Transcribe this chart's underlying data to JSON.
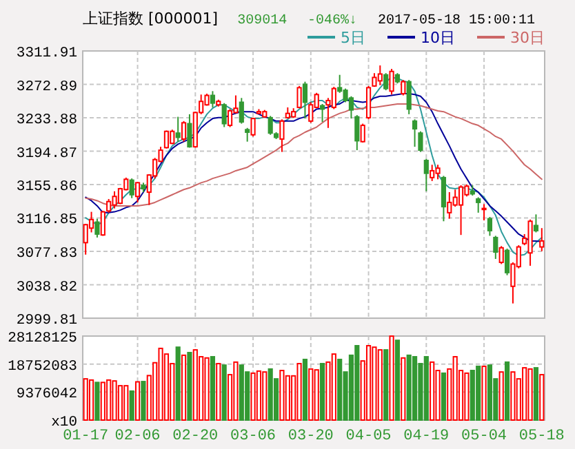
{
  "chart_data": [
    {
      "type": "candlestick",
      "title": "上证指数 [000001]",
      "annotations": [
        "309014",
        "-046%↓",
        "2017-05-18 15:00:11"
      ],
      "categories": [
        null,
        null,
        null,
        null,
        null,
        null,
        null,
        null,
        null,
        null,
        null,
        null,
        null,
        null,
        null,
        null,
        null,
        null,
        null,
        null,
        null,
        null,
        null,
        null,
        null,
        null,
        null,
        null,
        null,
        null,
        null,
        null,
        null,
        null,
        null,
        null,
        null,
        null,
        null,
        null,
        null,
        null,
        null,
        null,
        null,
        null,
        null,
        null,
        null,
        null,
        null,
        null,
        null,
        null,
        null,
        null,
        null,
        null,
        null,
        null,
        null,
        null,
        null,
        null,
        null,
        null,
        null,
        null,
        null,
        null,
        null,
        null,
        null,
        null,
        null,
        null,
        null,
        null,
        null,
        null
      ],
      "ohlc": [
        [
          3088,
          3110,
          3074,
          3109
        ],
        [
          3105,
          3124,
          3100,
          3115
        ],
        [
          3112,
          3116,
          3094,
          3098
        ],
        [
          3097,
          3125,
          3096,
          3124
        ],
        [
          3125,
          3139,
          3123,
          3136
        ],
        [
          3132,
          3148,
          3128,
          3142
        ],
        [
          3134,
          3152,
          3133,
          3151
        ],
        [
          3150,
          3164,
          3149,
          3162
        ],
        [
          3161,
          3163,
          3140,
          3144
        ],
        [
          3142,
          3159,
          3135,
          3158
        ],
        [
          3155,
          3158,
          3147,
          3151
        ],
        [
          3147,
          3168,
          3132,
          3167
        ],
        [
          3166,
          3187,
          3163,
          3185
        ],
        [
          3183,
          3200,
          3182,
          3196
        ],
        [
          3199,
          3219,
          3198,
          3218
        ],
        [
          3204,
          3220,
          3203,
          3218
        ],
        [
          3216,
          3235,
          3206,
          3211
        ],
        [
          3209,
          3230,
          3206,
          3228
        ],
        [
          3227,
          3238,
          3199,
          3200
        ],
        [
          3200,
          3241,
          3199,
          3240
        ],
        [
          3240,
          3261,
          3238,
          3253
        ],
        [
          3249,
          3262,
          3248,
          3260
        ],
        [
          3260,
          3265,
          3246,
          3251
        ],
        [
          3249,
          3255,
          3247,
          3253
        ],
        [
          3249,
          3251,
          3223,
          3227
        ],
        [
          3225,
          3244,
          3223,
          3242
        ],
        [
          3240,
          3260,
          3239,
          3245
        ],
        [
          3252,
          3257,
          3227,
          3229
        ],
        [
          3220,
          3222,
          3206,
          3217
        ],
        [
          3214,
          3234,
          3212,
          3233
        ],
        [
          3239,
          3244,
          3238,
          3241
        ],
        [
          3235,
          3243,
          3234,
          3241
        ],
        [
          3234,
          3236,
          3214,
          3216
        ],
        [
          3215,
          3217,
          3209,
          3211
        ],
        [
          3209,
          3232,
          3194,
          3230
        ],
        [
          3234,
          3246,
          3233,
          3239
        ],
        [
          3235,
          3245,
          3234,
          3241
        ],
        [
          3246,
          3271,
          3245,
          3269
        ],
        [
          3273,
          3276,
          3233,
          3252
        ],
        [
          3230,
          3252,
          3228,
          3249
        ],
        [
          3246,
          3263,
          3245,
          3261
        ],
        [
          3248,
          3250,
          3229,
          3244
        ],
        [
          3249,
          3257,
          3222,
          3254
        ],
        [
          3246,
          3270,
          3244,
          3268
        ],
        [
          3269,
          3284,
          3263,
          3265
        ],
        [
          3266,
          3268,
          3252,
          3254
        ],
        [
          3257,
          3259,
          3233,
          3243
        ],
        [
          3235,
          3237,
          3196,
          3207
        ],
        [
          3206,
          3227,
          3205,
          3225
        ],
        [
          3234,
          3271,
          3232,
          3269
        ],
        [
          3271,
          3286,
          3270,
          3281
        ],
        [
          3277,
          3295,
          3272,
          3285
        ],
        [
          3284,
          3286,
          3266,
          3268
        ],
        [
          3265,
          3291,
          3261,
          3288
        ],
        [
          3284,
          3286,
          3274,
          3276
        ],
        [
          3262,
          3278,
          3260,
          3276
        ],
        [
          3276,
          3278,
          3238,
          3244
        ],
        [
          3230,
          3232,
          3200,
          3221
        ],
        [
          3216,
          3218,
          3194,
          3196
        ],
        [
          3184,
          3186,
          3148,
          3169
        ],
        [
          3164,
          3179,
          3160,
          3172
        ],
        [
          3169,
          3179,
          3162,
          3175
        ],
        [
          3164,
          3166,
          3113,
          3130
        ],
        [
          3123,
          3147,
          3116,
          3135
        ],
        [
          3132,
          3150,
          3130,
          3141
        ],
        [
          3132,
          3155,
          3097,
          3153
        ],
        [
          3144,
          3156,
          3142,
          3154
        ],
        [
          3148,
          3155,
          3143,
          3145
        ],
        [
          3139,
          3141,
          3123,
          3135
        ],
        [
          3127,
          3133,
          3114,
          3128
        ],
        [
          3116,
          3118,
          3096,
          3102
        ],
        [
          3094,
          3096,
          3069,
          3077
        ],
        [
          3065,
          3084,
          3063,
          3082
        ],
        [
          3079,
          3081,
          3050,
          3053
        ],
        [
          3037,
          3065,
          3017,
          3063
        ],
        [
          3060,
          3085,
          3058,
          3083
        ],
        [
          3087,
          3098,
          3085,
          3093
        ],
        [
          3076,
          3115,
          3061,
          3113
        ],
        [
          3108,
          3121,
          3100,
          3102
        ],
        [
          3083,
          3105,
          3078,
          3090
        ]
      ],
      "series": [
        {
          "type": "line",
          "name": "5日",
          "color": "#2e9c9c",
          "values": [
            3117,
            3113,
            3109,
            3112,
            3123,
            3131,
            3137,
            3144,
            3150,
            3151,
            3152,
            3155,
            3163,
            3176,
            3190,
            3201,
            3206,
            3209,
            3211,
            3216,
            3227,
            3238,
            3245,
            3249,
            3249,
            3245,
            3241,
            3241,
            3235,
            3233,
            3233,
            3235,
            3233,
            3228,
            3228,
            3232,
            3238,
            3244,
            3248,
            3252,
            3254,
            3254,
            3249,
            3246,
            3253,
            3257,
            3254,
            3246,
            3244,
            3249,
            3260,
            3269,
            3276,
            3281,
            3280,
            3277,
            3275,
            3265,
            3244,
            3217,
            3190,
            3168,
            3158,
            3152,
            3151,
            3152,
            3152,
            3149,
            3147,
            3141,
            3131,
            3120,
            3101,
            3088,
            3077,
            3073,
            3074,
            3080,
            3088,
            3094
          ]
        },
        {
          "type": "line",
          "name": "10日",
          "color": "#000099",
          "values": [
            3141,
            3137,
            3131,
            3123,
            3123,
            3124,
            3126,
            3129,
            3131,
            3137,
            3147,
            3158,
            3169,
            3180,
            3190,
            3198,
            3203,
            3206,
            3209,
            3212,
            3222,
            3228,
            3233,
            3234,
            3234,
            3237,
            3239,
            3241,
            3241,
            3241,
            3238,
            3235,
            3233,
            3230,
            3230,
            3230,
            3230,
            3233,
            3235,
            3239,
            3244,
            3245,
            3246,
            3249,
            3250,
            3254,
            3254,
            3253,
            3252,
            3253,
            3257,
            3259,
            3259,
            3260,
            3261,
            3262,
            3262,
            3261,
            3259,
            3252,
            3241,
            3227,
            3214,
            3201,
            3187,
            3174,
            3163,
            3152,
            3147,
            3139,
            3131,
            3125,
            3119,
            3112,
            3105,
            3098,
            3094,
            3090,
            3090,
            3089
          ]
        },
        {
          "type": "line",
          "name": "30日",
          "color": "#cc6666",
          "values": [
            3140,
            3139,
            3137,
            3134,
            3132,
            3131,
            3131,
            3131,
            3131,
            3131,
            3132,
            3133,
            3135,
            3138,
            3141,
            3144,
            3147,
            3150,
            3152,
            3155,
            3158,
            3160,
            3163,
            3165,
            3167,
            3169,
            3172,
            3174,
            3176,
            3180,
            3184,
            3188,
            3192,
            3196,
            3201,
            3204,
            3210,
            3213,
            3217,
            3220,
            3223,
            3228,
            3233,
            3236,
            3239,
            3241,
            3244,
            3244,
            3245,
            3246,
            3246,
            3247,
            3248,
            3249,
            3250,
            3250,
            3250,
            3249,
            3248,
            3246,
            3244,
            3242,
            3241,
            3238,
            3235,
            3233,
            3230,
            3227,
            3225,
            3221,
            3217,
            3212,
            3209,
            3202,
            3195,
            3187,
            3179,
            3174,
            3168,
            3162
          ]
        }
      ],
      "ylim": [
        2999.81,
        3311.91
      ],
      "yticks": [
        2999.81,
        3038.82,
        3077.83,
        3116.85,
        3155.86,
        3194.87,
        3233.88,
        3272.89,
        3311.91
      ],
      "grid": true,
      "legend": "top right",
      "tick_labels": "y"
    },
    {
      "type": "bar",
      "categories": [
        "01-17",
        null,
        null,
        null,
        null,
        null,
        null,
        null,
        null,
        "02-06",
        null,
        null,
        null,
        null,
        null,
        null,
        null,
        null,
        null,
        "02-20",
        null,
        null,
        null,
        null,
        null,
        null,
        null,
        null,
        null,
        "03-06",
        null,
        null,
        null,
        null,
        null,
        null,
        null,
        null,
        null,
        "03-20",
        null,
        null,
        null,
        null,
        null,
        null,
        null,
        null,
        null,
        "04-05",
        null,
        null,
        null,
        null,
        null,
        null,
        null,
        null,
        null,
        "04-19",
        null,
        null,
        null,
        null,
        null,
        null,
        null,
        null,
        null,
        "05-04",
        null,
        null,
        null,
        null,
        null,
        null,
        null,
        null,
        null,
        "05-18"
      ],
      "values": [
        13800000,
        13400000,
        12600000,
        12600000,
        13400000,
        13100000,
        11500000,
        11500000,
        9700000,
        12800000,
        12900000,
        14900000,
        19200000,
        24000000,
        22100000,
        18900000,
        24400000,
        21700000,
        22600000,
        23500000,
        21200000,
        20800000,
        21200000,
        18900000,
        18400000,
        15200000,
        19400000,
        18400000,
        16100000,
        15700000,
        16400000,
        16100000,
        17100000,
        13800000,
        16600000,
        14800000,
        14800000,
        18900000,
        20300000,
        17100000,
        16800000,
        18900000,
        19400000,
        22100000,
        20300000,
        16100000,
        21700000,
        24900000,
        19800000,
        24900000,
        24400000,
        23500000,
        23500000,
        28100000,
        26700000,
        20800000,
        21700000,
        21200000,
        18900000,
        21200000,
        19400000,
        16600000,
        15700000,
        17100000,
        21200000,
        16600000,
        15700000,
        16600000,
        18000000,
        18000000,
        18400000,
        13800000,
        16100000,
        19400000,
        16100000,
        13800000,
        17500000,
        17100000,
        17500000,
        15200000
      ],
      "colors": [
        "#ff0000",
        "#ff0000",
        "#339933",
        "#ff0000",
        "#ff0000",
        "#ff0000",
        "#ff0000",
        "#ff0000",
        "#339933",
        "#ff0000",
        "#339933",
        "#ff0000",
        "#ff0000",
        "#ff0000",
        "#ff0000",
        "#ff0000",
        "#339933",
        "#ff0000",
        "#339933",
        "#ff0000",
        "#ff0000",
        "#ff0000",
        "#339933",
        "#ff0000",
        "#339933",
        "#ff0000",
        "#ff0000",
        "#339933",
        "#339933",
        "#ff0000",
        "#ff0000",
        "#ff0000",
        "#339933",
        "#339933",
        "#ff0000",
        "#ff0000",
        "#ff0000",
        "#ff0000",
        "#339933",
        "#ff0000",
        "#ff0000",
        "#339933",
        "#ff0000",
        "#ff0000",
        "#339933",
        "#339933",
        "#339933",
        "#339933",
        "#ff0000",
        "#ff0000",
        "#ff0000",
        "#ff0000",
        "#339933",
        "#ff0000",
        "#339933",
        "#ff0000",
        "#339933",
        "#339933",
        "#339933",
        "#339933",
        "#ff0000",
        "#ff0000",
        "#339933",
        "#ff0000",
        "#ff0000",
        "#ff0000",
        "#ff0000",
        "#339933",
        "#339933",
        "#ff0000",
        "#339933",
        "#339933",
        "#ff0000",
        "#339933",
        "#ff0000",
        "#ff0000",
        "#ff0000",
        "#ff0000",
        "#339933",
        "#ff0000"
      ],
      "ylim": [
        0,
        28128125
      ],
      "yticks": [
        {
          "value": 0,
          "label": "x10"
        },
        9376042,
        18752083,
        28128125
      ],
      "grid": true
    }
  ]
}
